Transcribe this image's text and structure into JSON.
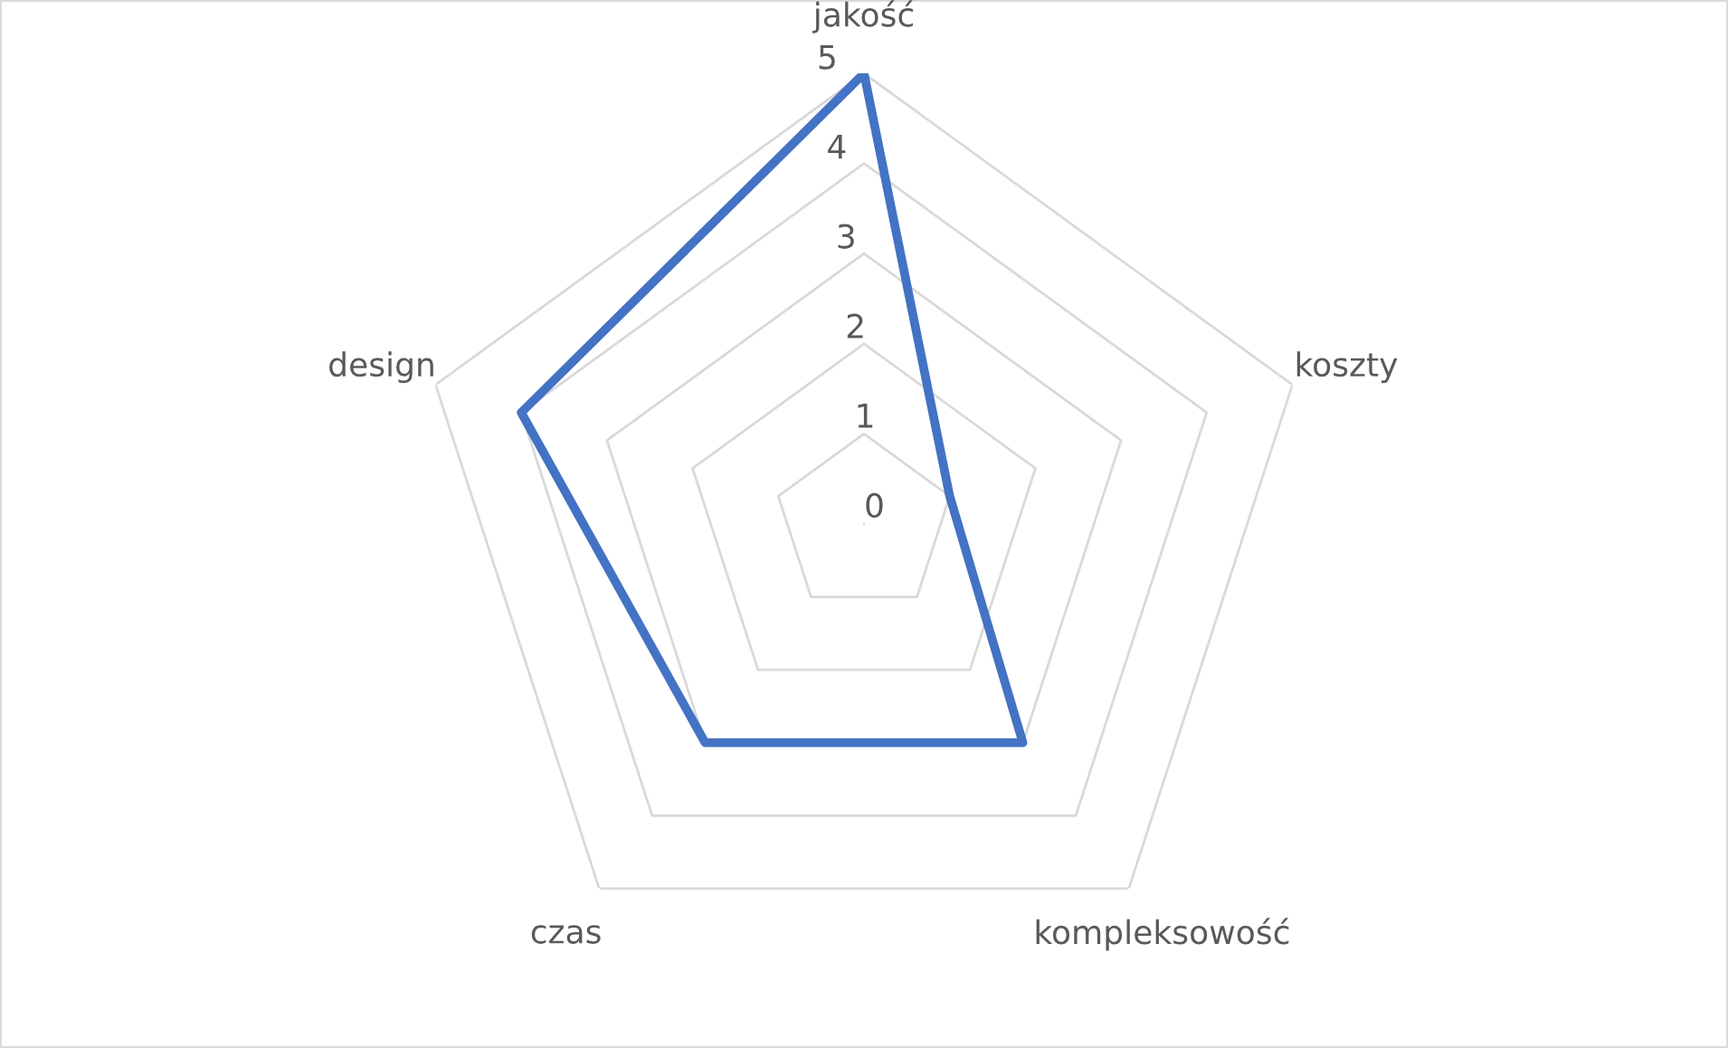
{
  "chart_data": {
    "type": "radar",
    "categories": [
      "jakość",
      "koszty",
      "kompleksowość",
      "czas",
      "design"
    ],
    "series": [
      {
        "color": "#4472c4",
        "values": [
          5,
          1,
          3,
          3,
          4
        ]
      }
    ],
    "ylim": [
      0,
      5
    ],
    "yticks": [
      0,
      1,
      2,
      3,
      4,
      5
    ],
    "grid": true,
    "marker": "none"
  }
}
